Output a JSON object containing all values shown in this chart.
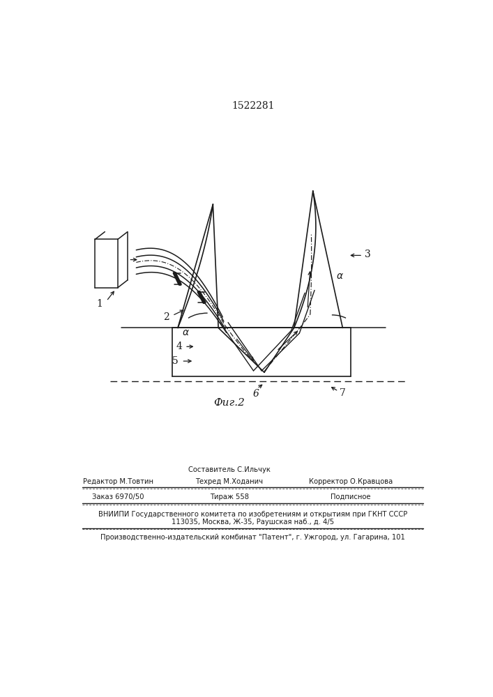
{
  "patent_number": "1522281",
  "bg_color": "#ffffff",
  "line_color": "#1a1a1a",
  "fig_label": "Фиг.2",
  "bottom": {
    "editor": "Редактор М.Товтин",
    "composer": "Составитель С.Ильчук",
    "corrector": "Корректор О.Кравцова",
    "techred": "Техред М.Ходанич",
    "order": "Заказ 6970/50",
    "tirazh": "Тираж 558",
    "podpisnoe": "Подписное",
    "vniipи": "ВНИИПИ Государственного комитета по изобретениям и открытиям при ГКНТ СССР",
    "address": "113035, Москва, Ж-35, Раушская наб., д. 4/5",
    "patent_plant": "Производственно-издательский комбинат \"Патент\", г. Ужгород, ул. Гагарина, 101"
  }
}
